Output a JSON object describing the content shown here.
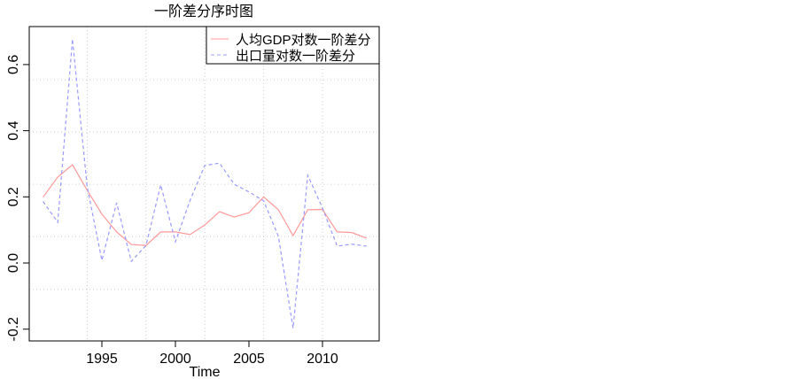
{
  "chart_data": {
    "type": "line",
    "title": "一阶差分序时图",
    "xlabel": "Time",
    "ylabel": "",
    "x": [
      1991,
      1992,
      1993,
      1994,
      1995,
      1996,
      1997,
      1998,
      1999,
      2000,
      2001,
      2002,
      2003,
      2004,
      2005,
      2006,
      2007,
      2008,
      2009,
      2010,
      2011,
      2012,
      2013
    ],
    "xlim": [
      1990.0,
      2014.0
    ],
    "ylim": [
      -0.23,
      0.7
    ],
    "xticks": [
      1995,
      2000,
      2005,
      2010
    ],
    "xtick_labels": [
      "1995",
      "2000",
      "2005",
      "2010"
    ],
    "yticks": [
      0.6,
      0.4,
      0.2,
      0.0,
      -0.2
    ],
    "ytick_labels": [
      "0.6",
      "0.4",
      "0.2",
      "0.0",
      "-0.2"
    ],
    "grid": true,
    "legend_position": "top-right",
    "series": [
      {
        "name": "人均GDP对数一阶差分",
        "color": "#ff9999",
        "style": "solid",
        "values": [
          0.199,
          0.26,
          0.297,
          0.22,
          0.148,
          0.094,
          0.056,
          0.053,
          0.094,
          0.094,
          0.086,
          0.115,
          0.155,
          0.139,
          0.152,
          0.2,
          0.161,
          0.083,
          0.161,
          0.162,
          0.094,
          0.092,
          0.075
        ]
      },
      {
        "name": "出口量对数一阶差分",
        "color": "#9999ff",
        "style": "dashed",
        "values": [
          0.186,
          0.123,
          0.677,
          0.23,
          0.008,
          0.182,
          0.005,
          0.053,
          0.236,
          0.064,
          0.19,
          0.295,
          0.302,
          0.238,
          0.215,
          0.188,
          0.081,
          -0.197,
          0.265,
          0.166,
          0.051,
          0.057,
          0.051
        ]
      }
    ]
  }
}
